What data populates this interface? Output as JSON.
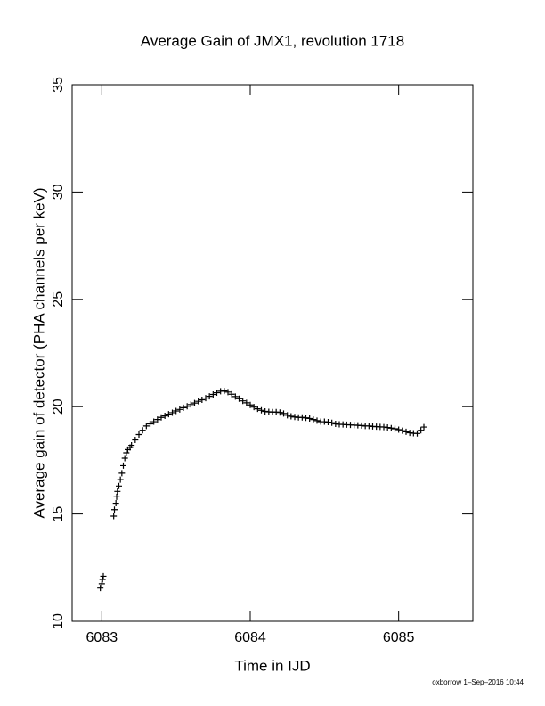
{
  "chart_data": {
    "type": "scatter",
    "title": "Average Gain of JMX1, revolution 1718",
    "x_label": "Time in IJD",
    "y_label": "Average gain of detector (PHA channels per keV)",
    "footer": "oxborrow  1–Sep–2016 10:44",
    "xlim": [
      6082.8,
      6085.5
    ],
    "ylim": [
      10,
      35
    ],
    "xticks": [
      6083,
      6084,
      6085
    ],
    "yticks": [
      10,
      15,
      20,
      25,
      30,
      35
    ],
    "grid": false,
    "series": [
      {
        "color": "#000000",
        "marker": "+",
        "x": [
          6082.99,
          6083.0,
          6083.005,
          6083.01,
          6083.08,
          6083.085,
          6083.095,
          6083.1,
          6083.105,
          6083.115,
          6083.125,
          6083.135,
          6083.145,
          6083.155,
          6083.165,
          6083.175,
          6083.19,
          6083.2,
          6083.225,
          6083.25,
          6083.275,
          6083.3,
          6083.325,
          6083.35,
          6083.375,
          6083.4,
          6083.425,
          6083.45,
          6083.475,
          6083.5,
          6083.525,
          6083.55,
          6083.575,
          6083.6,
          6083.625,
          6083.65,
          6083.675,
          6083.7,
          6083.725,
          6083.75,
          6083.775,
          6083.8,
          6083.825,
          6083.85,
          6083.875,
          6083.9,
          6083.925,
          6083.95,
          6083.975,
          6084.0,
          6084.025,
          6084.05,
          6084.075,
          6084.1,
          6084.125,
          6084.15,
          6084.175,
          6084.2,
          6084.225,
          6084.25,
          6084.275,
          6084.3,
          6084.325,
          6084.35,
          6084.375,
          6084.4,
          6084.425,
          6084.45,
          6084.475,
          6084.5,
          6084.525,
          6084.55,
          6084.575,
          6084.6,
          6084.625,
          6084.65,
          6084.675,
          6084.7,
          6084.725,
          6084.75,
          6084.775,
          6084.8,
          6084.825,
          6084.85,
          6084.875,
          6084.9,
          6084.925,
          6084.95,
          6084.975,
          6085.0,
          6085.025,
          6085.05,
          6085.075,
          6085.1,
          6085.125,
          6085.15,
          6085.17
        ],
        "values": [
          11.55,
          11.75,
          11.95,
          12.1,
          14.9,
          15.2,
          15.5,
          15.8,
          16.05,
          16.3,
          16.6,
          16.9,
          17.25,
          17.6,
          17.85,
          18.0,
          18.1,
          18.2,
          18.45,
          18.7,
          18.9,
          19.1,
          19.2,
          19.3,
          19.4,
          19.5,
          19.57,
          19.65,
          19.72,
          19.8,
          19.87,
          19.95,
          20.02,
          20.1,
          20.17,
          20.25,
          20.32,
          20.4,
          20.48,
          20.57,
          20.65,
          20.72,
          20.73,
          20.68,
          20.58,
          20.47,
          20.37,
          20.27,
          20.18,
          20.08,
          19.98,
          19.9,
          19.83,
          19.78,
          19.76,
          19.75,
          19.75,
          19.73,
          19.68,
          19.6,
          19.55,
          19.52,
          19.5,
          19.5,
          19.48,
          19.45,
          19.4,
          19.35,
          19.3,
          19.3,
          19.28,
          19.25,
          19.2,
          19.18,
          19.17,
          19.16,
          19.15,
          19.14,
          19.13,
          19.12,
          19.1,
          19.1,
          19.08,
          19.07,
          19.06,
          19.05,
          19.03,
          19.0,
          18.97,
          18.93,
          18.88,
          18.83,
          18.78,
          18.76,
          18.75,
          18.9,
          19.05
        ]
      }
    ]
  }
}
